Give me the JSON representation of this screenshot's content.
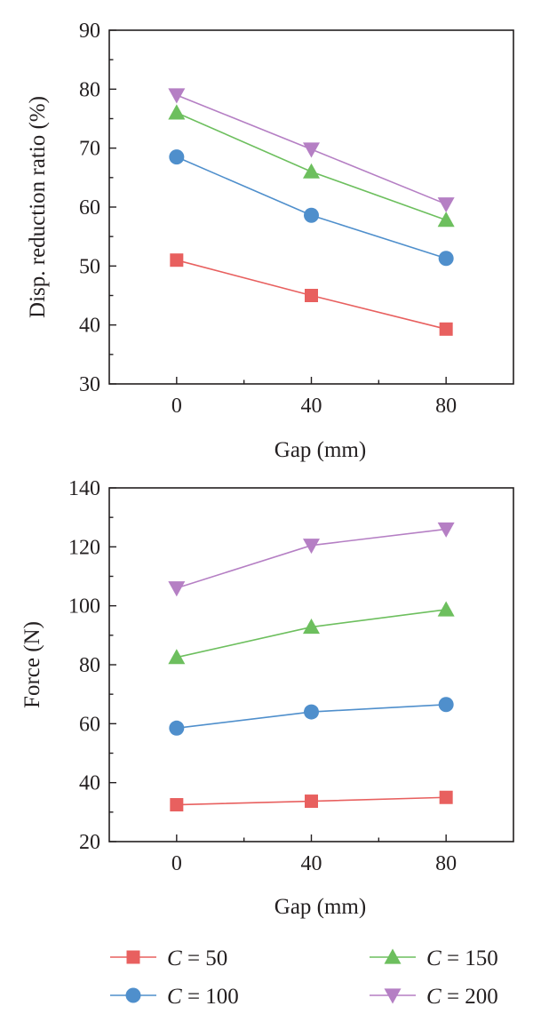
{
  "chart_data": [
    {
      "type": "line",
      "title": "",
      "xlabel": "Gap (mm)",
      "ylabel": "Disp. reduction ratio (%)",
      "x": [
        0,
        40,
        80
      ],
      "xlim": [
        -20,
        100
      ],
      "xticks": [
        0,
        40,
        80
      ],
      "ylim": [
        30,
        90
      ],
      "yticks": [
        30,
        40,
        50,
        60,
        70,
        80,
        90
      ],
      "grid": false,
      "series": [
        {
          "name": "C = 50",
          "values": [
            51,
            45,
            39.3
          ]
        },
        {
          "name": "C = 100",
          "values": [
            68.5,
            58.6,
            51.3
          ]
        },
        {
          "name": "C = 150",
          "values": [
            76,
            66,
            57.8
          ]
        },
        {
          "name": "C = 200",
          "values": [
            79,
            69.8,
            60.5
          ]
        }
      ]
    },
    {
      "type": "line",
      "title": "",
      "xlabel": "Gap (mm)",
      "ylabel": "Force (N)",
      "x": [
        0,
        40,
        80
      ],
      "xlim": [
        -20,
        100
      ],
      "xticks": [
        0,
        40,
        80
      ],
      "ylim": [
        20,
        140
      ],
      "yticks": [
        20,
        40,
        60,
        80,
        100,
        120,
        140
      ],
      "grid": false,
      "series": [
        {
          "name": "C = 50",
          "values": [
            32.5,
            33.7,
            35
          ]
        },
        {
          "name": "C = 100",
          "values": [
            58.5,
            64,
            66.5
          ]
        },
        {
          "name": "C = 150",
          "values": [
            82.5,
            92.8,
            98.7
          ]
        },
        {
          "name": "C = 200",
          "values": [
            106,
            120.5,
            126
          ]
        }
      ]
    }
  ],
  "legend": {
    "placement": "bottom",
    "items": [
      {
        "symbol": "C",
        "rest": " = 50",
        "marker": "square",
        "color": "#e8605f"
      },
      {
        "symbol": "C",
        "rest": " = 150",
        "marker": "triangle-up",
        "color": "#6dbf5e"
      },
      {
        "symbol": "C",
        "rest": " = 100",
        "marker": "circle",
        "color": "#4f8fcc"
      },
      {
        "symbol": "C",
        "rest": " = 200",
        "marker": "triangle-down",
        "color": "#b57fc4"
      }
    ]
  },
  "series_style": [
    {
      "marker": "square",
      "color": "#e8605f"
    },
    {
      "marker": "circle",
      "color": "#4f8fcc"
    },
    {
      "marker": "triangle-up",
      "color": "#6dbf5e"
    },
    {
      "marker": "triangle-down",
      "color": "#b57fc4"
    }
  ]
}
